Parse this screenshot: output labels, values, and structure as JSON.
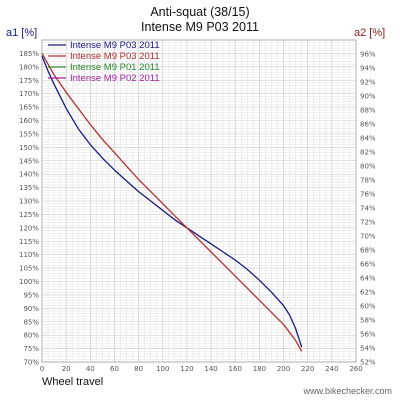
{
  "chart_data": {
    "type": "line",
    "title": "Anti-squat (38/15)",
    "subtitle": "Intense M9 P03 2011",
    "left_axis_label": "a1 [%]",
    "right_axis_label": "a2 [%]",
    "xlabel": "Wheel travel",
    "watermark": "www.bikechecker.com",
    "xlim": [
      0,
      260
    ],
    "ylim_left": [
      70,
      190
    ],
    "ylim_right": [
      52,
      98
    ],
    "x_ticks": [
      "0",
      "20",
      "40",
      "60",
      "80",
      "100",
      "120",
      "140",
      "160",
      "180",
      "200",
      "220",
      "240",
      "260"
    ],
    "y_ticks_left": [
      "70%",
      "75%",
      "80%",
      "85%",
      "90%",
      "95%",
      "100%",
      "105%",
      "110%",
      "115%",
      "120%",
      "125%",
      "130%",
      "135%",
      "140%",
      "145%",
      "150%",
      "155%",
      "160%",
      "165%",
      "170%",
      "175%",
      "180%",
      "185%"
    ],
    "y_ticks_right": [
      "52%",
      "54%",
      "56%",
      "58%",
      "60%",
      "62%",
      "64%",
      "66%",
      "68%",
      "70%",
      "72%",
      "74%",
      "76%",
      "78%",
      "80%",
      "82%",
      "84%",
      "86%",
      "88%",
      "90%",
      "92%",
      "94%",
      "96%"
    ],
    "grid": true,
    "legend_position": "top-left",
    "series": [
      {
        "name": "Intense M9 P03 2011",
        "color": "#1a1a80",
        "x": [
          0,
          5,
          10,
          20,
          30,
          40,
          50,
          60,
          70,
          80,
          90,
          100,
          110,
          120,
          130,
          140,
          150,
          160,
          170,
          180,
          190,
          200,
          205,
          210,
          215
        ],
        "y": [
          184,
          178.5,
          173.5,
          164.5,
          157,
          151,
          146,
          141.5,
          137.5,
          133.5,
          130,
          126.5,
          123,
          120,
          117,
          114,
          111,
          108,
          104.5,
          100.5,
          96,
          91,
          87.5,
          82.5,
          75.5
        ]
      },
      {
        "name": "Intense M9 P03 2011",
        "color": "#b03030",
        "x": [
          0,
          5,
          10,
          20,
          30,
          40,
          50,
          60,
          70,
          80,
          90,
          100,
          110,
          120,
          130,
          140,
          150,
          160,
          170,
          180,
          190,
          200,
          205,
          210,
          215
        ],
        "y": [
          185,
          181,
          177,
          170.5,
          164.5,
          158.5,
          153,
          148,
          143,
          138,
          133.5,
          129,
          124.5,
          120,
          115.5,
          111,
          106.5,
          102,
          97.5,
          93,
          88.5,
          84,
          81,
          78,
          74
        ]
      },
      {
        "name": "Intense M9 P01 2011",
        "color": "#2a8a2a",
        "x": [],
        "y": []
      },
      {
        "name": "Intense M9 P02 2011",
        "color": "#a020a0",
        "x": [],
        "y": []
      }
    ]
  }
}
